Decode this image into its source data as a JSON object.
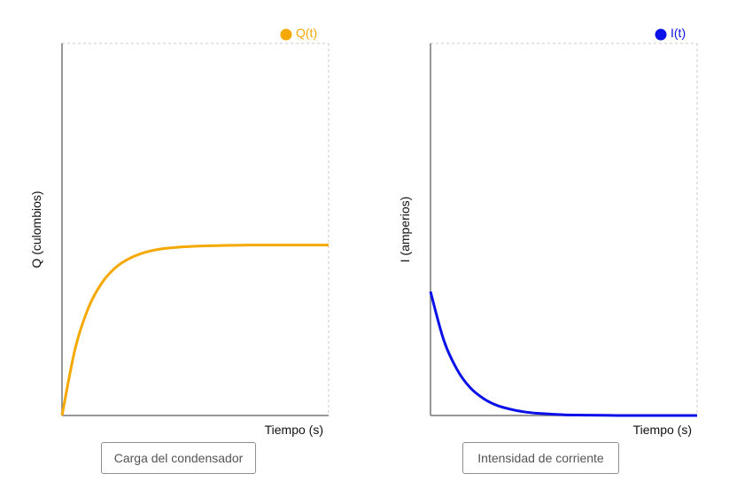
{
  "chart_data": [
    {
      "type": "line",
      "xlabel": "Tiempo (s)",
      "ylabel": "Q (culombios)",
      "grid": false,
      "legend_position": "top-right",
      "xlim": [
        0,
        10
      ],
      "ylim": [
        0,
        10
      ],
      "series": [
        {
          "name": "Q(t)",
          "color": "#f5a800",
          "x": [
            0,
            0.5,
            1,
            1.5,
            2,
            2.5,
            3,
            3.5,
            4,
            5,
            6,
            7,
            8,
            9,
            10
          ],
          "y": [
            0,
            1.81,
            2.91,
            3.57,
            3.97,
            4.21,
            4.36,
            4.45,
            4.5,
            4.55,
            4.57,
            4.58,
            4.58,
            4.58,
            4.58
          ]
        }
      ]
    },
    {
      "type": "line",
      "xlabel": "Tiempo (s)",
      "ylabel": "I (amperios)",
      "grid": false,
      "legend_position": "top-right",
      "xlim": [
        0,
        10
      ],
      "ylim": [
        0,
        10
      ],
      "series": [
        {
          "name": "I(t)",
          "color": "#0a10e8",
          "x": [
            0,
            0.5,
            1,
            1.5,
            2,
            2.5,
            3,
            3.5,
            4,
            5,
            6,
            7,
            8,
            9,
            10
          ],
          "y": [
            3.33,
            2.02,
            1.23,
            0.74,
            0.45,
            0.27,
            0.17,
            0.1,
            0.06,
            0.02,
            0.01,
            0.0,
            0.0,
            0.0,
            0.0
          ]
        }
      ]
    }
  ],
  "buttons": {
    "charge_label": "Carga del condensador",
    "current_label": "Intensidad de corriente"
  }
}
